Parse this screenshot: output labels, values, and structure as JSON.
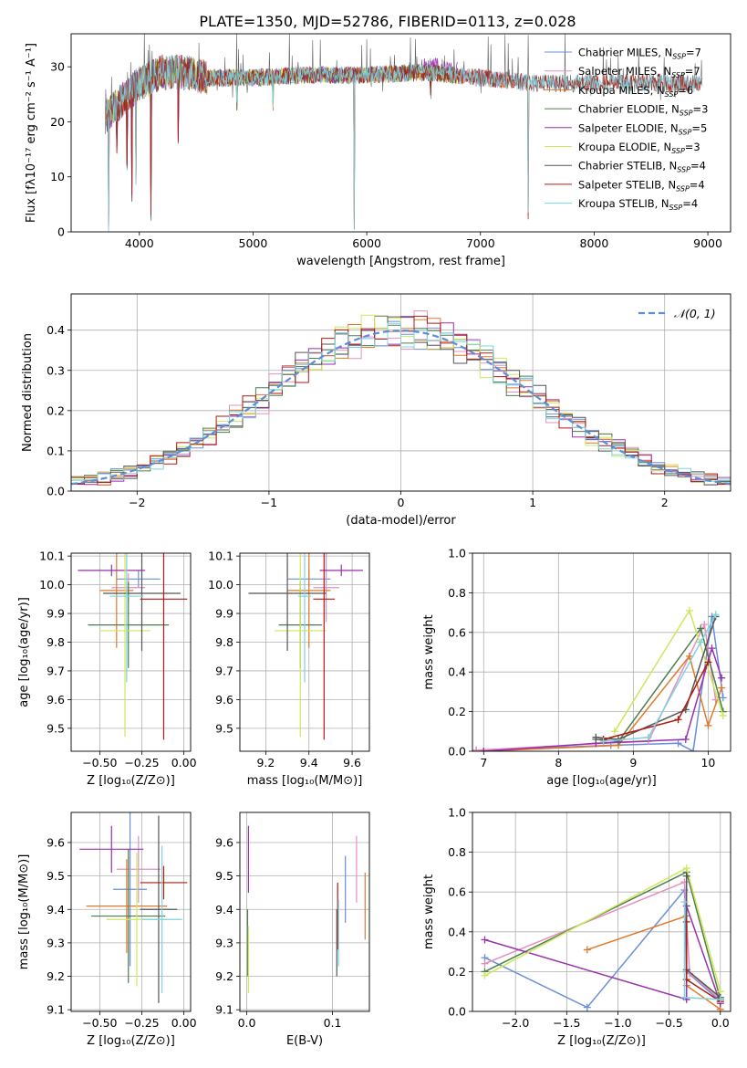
{
  "suptitle": "PLATE=1350, MJD=52786, FIBERID=0113, z=0.028",
  "colors": {
    "chabrier_miles": "#6a8fd8",
    "salpeter_miles": "#e58fbf",
    "kroupa_miles": "#e07a2a",
    "chabrier_elodie": "#4e7d4e",
    "salpeter_elodie": "#9b2fae",
    "kroupa_elodie": "#cde85a",
    "chabrier_stelib": "#555555",
    "salpeter_stelib": "#b01a12",
    "kroupa_stelib": "#7fd3df"
  },
  "chart_data": [
    {
      "id": "spectrum",
      "type": "line",
      "xlabel": "wavelength [Angstrom, rest frame]",
      "ylabel": "Flux [fλ10⁻¹⁷ erg cm⁻² s⁻¹ A⁻¹]",
      "xlim": [
        3400,
        9200
      ],
      "ylim": [
        0,
        36
      ],
      "xticks": [
        4000,
        5000,
        6000,
        7000,
        8000,
        9000
      ],
      "yticks": [
        0,
        10,
        20,
        30
      ],
      "legend_placement": "top-right",
      "grid": false,
      "series": [
        {
          "name": "Chabrier MILES, N_SSP=7",
          "label": "Chabrier MILES, N",
          "sub": "SSP",
          "suffix": "=7",
          "color": "#6a8fd8",
          "range": [
            3700,
            7400
          ]
        },
        {
          "name": "Salpeter MILES, N_SSP=7",
          "label": "Salpeter MILES, N",
          "sub": "SSP",
          "suffix": "=7",
          "color": "#e58fbf",
          "range": [
            3700,
            7400
          ]
        },
        {
          "name": "Kroupa MILES, N_SSP=6",
          "label": "Kroupa MILES, N",
          "sub": "SSP",
          "suffix": "=6",
          "color": "#e07a2a",
          "range": [
            3700,
            7430
          ]
        },
        {
          "name": "Chabrier ELODIE, N_SSP=3",
          "label": "Chabrier ELODIE, N",
          "sub": "SSP",
          "suffix": "=3",
          "color": "#4e7d4e",
          "range": [
            3700,
            6800
          ]
        },
        {
          "name": "Salpeter ELODIE, N_SSP=5",
          "label": "Salpeter ELODIE, N",
          "sub": "SSP",
          "suffix": "=5",
          "color": "#9b2fae",
          "range": [
            3700,
            6800
          ]
        },
        {
          "name": "Kroupa ELODIE, N_SSP=3",
          "label": "Kroupa ELODIE, N",
          "sub": "SSP",
          "suffix": "=3",
          "color": "#cde85a",
          "range": [
            3700,
            6800
          ]
        },
        {
          "name": "Chabrier STELIB, N_SSP=4",
          "label": "Chabrier STELIB, N",
          "sub": "SSP",
          "suffix": "=4",
          "color": "#555555",
          "range": [
            3700,
            8950
          ]
        },
        {
          "name": "Salpeter STELIB, N_SSP=4",
          "label": "Salpeter STELIB, N",
          "sub": "SSP",
          "suffix": "=4",
          "color": "#b01a12",
          "range": [
            3700,
            8950
          ]
        },
        {
          "name": "Kroupa STELIB, N_SSP=4",
          "label": "Kroupa STELIB, N",
          "sub": "SSP",
          "suffix": "=4",
          "color": "#7fd3df",
          "range": [
            3700,
            8950
          ]
        }
      ],
      "continuum": [
        [
          3700,
          21
        ],
        [
          3800,
          23
        ],
        [
          3900,
          25
        ],
        [
          4000,
          27
        ],
        [
          4200,
          29
        ],
        [
          4400,
          29
        ],
        [
          4600,
          28
        ],
        [
          5000,
          28
        ],
        [
          5500,
          28.5
        ],
        [
          6000,
          28.5
        ],
        [
          6500,
          29
        ],
        [
          7000,
          28
        ],
        [
          7500,
          27
        ],
        [
          8000,
          27
        ],
        [
          8500,
          27
        ],
        [
          8950,
          27
        ]
      ],
      "dips": [
        [
          3730,
          0
        ],
        [
          3800,
          14
        ],
        [
          3890,
          11
        ],
        [
          3935,
          5
        ],
        [
          3970,
          8
        ],
        [
          4100,
          2
        ],
        [
          4340,
          16
        ],
        [
          4860,
          22
        ],
        [
          5175,
          22
        ],
        [
          5890,
          0
        ],
        [
          6563,
          24
        ],
        [
          7420,
          2
        ]
      ]
    },
    {
      "id": "residuals",
      "type": "bar",
      "xlabel": "(data-model)/error",
      "ylabel": "Normed distribution",
      "xlim": [
        -2.5,
        2.5
      ],
      "ylim": [
        0,
        0.49
      ],
      "xticks": [
        -2,
        -1,
        0,
        1,
        2
      ],
      "yticks": [
        0.0,
        0.1,
        0.2,
        0.3,
        0.4
      ],
      "bin_width": 0.1,
      "legend_placement": "top-right",
      "legend_label": "𝒩(0, 1)",
      "reference_curve_color": "#5b8ed8",
      "grid": true
    },
    {
      "id": "age_vs_Z",
      "type": "scatter",
      "xlabel": "Z [log₁₀(Z/Z⊙)]",
      "ylabel": "age [log₁₀(age/yr)]",
      "xlim": [
        -0.67,
        0.04
      ],
      "ylim": [
        9.42,
        10.11
      ],
      "xticks": [
        -0.5,
        -0.25,
        0.0
      ],
      "yticks": [
        9.5,
        9.6,
        9.7,
        9.8,
        9.9,
        10.0,
        10.1
      ],
      "grid": true,
      "points": [
        {
          "color": "#6a8fd8",
          "x": -0.27,
          "xerr": 0.13,
          "y": 10.02,
          "yerr": 0.03
        },
        {
          "color": "#e58fbf",
          "x": -0.33,
          "xerr": 0.1,
          "y": 9.99,
          "yerr": 0.05
        },
        {
          "color": "#e07a2a",
          "x": -0.4,
          "xerr": 0.1,
          "y": 9.98,
          "yerr": 0.2
        },
        {
          "color": "#4e7d4e",
          "x": -0.33,
          "xerr": 0.24,
          "y": 9.86,
          "yerr": 0.15
        },
        {
          "color": "#9b2fae",
          "x": -0.43,
          "xerr": 0.2,
          "y": 10.05,
          "yerr": 0.02
        },
        {
          "color": "#cde85a",
          "x": -0.35,
          "xerr": 0.15,
          "y": 9.84,
          "yerr": 0.37
        },
        {
          "color": "#555555",
          "x": -0.25,
          "xerr": 0.23,
          "y": 9.97,
          "yerr": 0.2
        },
        {
          "color": "#b01a12",
          "x": -0.12,
          "xerr": 0.14,
          "y": 9.95,
          "yerr": 0.49
        },
        {
          "color": "#7fd3df",
          "x": -0.34,
          "xerr": 0.1,
          "y": 9.96,
          "yerr": 0.3
        }
      ]
    },
    {
      "id": "age_vs_mass",
      "type": "scatter",
      "xlabel": "mass [log₁₀(M/M⊙)]",
      "ylabel": "",
      "xlim": [
        9.08,
        9.68
      ],
      "ylim": [
        9.42,
        10.11
      ],
      "xticks": [
        9.2,
        9.4,
        9.6
      ],
      "yticks": [
        9.5,
        9.6,
        9.7,
        9.8,
        9.9,
        10.0,
        10.1
      ],
      "grid": true,
      "points": [
        {
          "color": "#6a8fd8",
          "x": 9.4,
          "xerr": 0.1,
          "y": 10.02,
          "yerr": 0.03
        },
        {
          "color": "#e58fbf",
          "x": 9.48,
          "xerr": 0.06,
          "y": 9.99,
          "yerr": 0.12
        },
        {
          "color": "#e07a2a",
          "x": 9.4,
          "xerr": 0.1,
          "y": 9.98,
          "yerr": 0.2
        },
        {
          "color": "#4e7d4e",
          "x": 9.36,
          "xerr": 0.1,
          "y": 9.86,
          "yerr": 0.15
        },
        {
          "color": "#9b2fae",
          "x": 9.55,
          "xerr": 0.1,
          "y": 10.05,
          "yerr": 0.02
        },
        {
          "color": "#cde85a",
          "x": 9.36,
          "xerr": 0.12,
          "y": 9.84,
          "yerr": 0.37
        },
        {
          "color": "#555555",
          "x": 9.3,
          "xerr": 0.18,
          "y": 9.97,
          "yerr": 0.2
        },
        {
          "color": "#b01a12",
          "x": 9.47,
          "xerr": 0.05,
          "y": 9.95,
          "yerr": 0.49
        },
        {
          "color": "#7fd3df",
          "x": 9.38,
          "xerr": 0.03,
          "y": 9.96,
          "yerr": 0.3
        }
      ]
    },
    {
      "id": "mass_weight_vs_age",
      "type": "line",
      "xlabel": "age [log₁₀(age/yr)]",
      "ylabel": "mass weight",
      "xlim": [
        6.85,
        10.3
      ],
      "ylim": [
        0,
        1.0
      ],
      "xticks": [
        7,
        8,
        9,
        10
      ],
      "yticks": [
        0.0,
        0.2,
        0.4,
        0.6,
        0.8,
        1.0
      ],
      "grid": true,
      "series": [
        {
          "color": "#6a8fd8",
          "points": [
            [
              6.9,
              0.005
            ],
            [
              8.7,
              0.03
            ],
            [
              9.6,
              0.04
            ],
            [
              9.8,
              0.0
            ],
            [
              10.05,
              0.68
            ],
            [
              10.2,
              0.27
            ]
          ]
        },
        {
          "color": "#e58fbf",
          "points": [
            [
              6.9,
              0.005
            ],
            [
              8.6,
              0.04
            ],
            [
              9.2,
              0.05
            ],
            [
              9.95,
              0.64
            ],
            [
              10.1,
              0.26
            ]
          ]
        },
        {
          "color": "#e07a2a",
          "points": [
            [
              7.0,
              0.0
            ],
            [
              8.8,
              0.03
            ],
            [
              9.75,
              0.48
            ],
            [
              10.0,
              0.13
            ],
            [
              10.18,
              0.32
            ]
          ]
        },
        {
          "color": "#4e7d4e",
          "points": [
            [
              8.5,
              0.06
            ],
            [
              8.8,
              0.05
            ],
            [
              9.9,
              0.62
            ],
            [
              10.2,
              0.2
            ]
          ]
        },
        {
          "color": "#9b2fae",
          "points": [
            [
              7.0,
              0.0
            ],
            [
              8.5,
              0.04
            ],
            [
              9.7,
              0.06
            ],
            [
              10.05,
              0.52
            ],
            [
              10.18,
              0.37
            ]
          ]
        },
        {
          "color": "#cde85a",
          "points": [
            [
              8.75,
              0.1
            ],
            [
              9.75,
              0.71
            ],
            [
              10.2,
              0.18
            ]
          ]
        },
        {
          "color": "#555555",
          "points": [
            [
              8.5,
              0.07
            ],
            [
              8.8,
              0.06
            ],
            [
              9.7,
              0.21
            ],
            [
              10.1,
              0.68
            ]
          ]
        },
        {
          "color": "#b01a12",
          "points": [
            [
              8.6,
              0.06
            ],
            [
              9.6,
              0.16
            ],
            [
              10.0,
              0.45
            ]
          ]
        },
        {
          "color": "#7fd3df",
          "points": [
            [
              8.6,
              0.05
            ],
            [
              9.2,
              0.07
            ],
            [
              9.9,
              0.55
            ],
            [
              10.1,
              0.69
            ]
          ]
        }
      ]
    },
    {
      "id": "mass_vs_Z",
      "type": "scatter",
      "xlabel": "Z [log₁₀(Z/Z⊙)]",
      "ylabel": "mass [log₁₀(M/M⊙)]",
      "xlim": [
        -0.67,
        0.04
      ],
      "ylim": [
        9.095,
        9.69
      ],
      "xticks": [
        -0.5,
        -0.25,
        0.0
      ],
      "yticks": [
        9.1,
        9.2,
        9.3,
        9.4,
        9.5,
        9.6
      ],
      "grid": true,
      "points": [
        {
          "color": "#6a8fd8",
          "x": -0.32,
          "xerr": 0.1,
          "y": 9.46,
          "yerr": 0.23
        },
        {
          "color": "#e58fbf",
          "x": -0.27,
          "xerr": 0.13,
          "y": 9.52,
          "yerr": 0.1
        },
        {
          "color": "#e07a2a",
          "x": -0.34,
          "xerr": 0.24,
          "y": 9.41,
          "yerr": 0.14
        },
        {
          "color": "#4e7d4e",
          "x": -0.33,
          "xerr": 0.22,
          "y": 9.38,
          "yerr": 0.2
        },
        {
          "color": "#9b2fae",
          "x": -0.43,
          "xerr": 0.19,
          "y": 9.58,
          "yerr": 0.07
        },
        {
          "color": "#cde85a",
          "x": -0.28,
          "xerr": 0.18,
          "y": 9.37,
          "yerr": 0.2
        },
        {
          "color": "#555555",
          "x": -0.15,
          "xerr": 0.11,
          "y": 9.4,
          "yerr": 0.28
        },
        {
          "color": "#b01a12",
          "x": -0.12,
          "xerr": 0.14,
          "y": 9.48,
          "yerr": 0.05
        },
        {
          "color": "#7fd3df",
          "x": -0.13,
          "xerr": 0.12,
          "y": 9.37,
          "yerr": 0.22
        }
      ]
    },
    {
      "id": "mass_vs_ebv",
      "type": "scatter",
      "xlabel": "E(B-V)",
      "ylabel": "",
      "xlim": [
        -0.008,
        0.143
      ],
      "ylim": [
        9.095,
        9.69
      ],
      "xticks": [
        0.0,
        0.1
      ],
      "yticks": [
        9.1,
        9.2,
        9.3,
        9.4,
        9.5,
        9.6
      ],
      "grid": true,
      "points": [
        {
          "color": "#6a8fd8",
          "x": 0.115,
          "y": 9.46,
          "yerr": 0.1
        },
        {
          "color": "#e58fbf",
          "x": 0.128,
          "y": 9.52,
          "yerr": 0.1
        },
        {
          "color": "#e07a2a",
          "x": 0.138,
          "y": 9.41,
          "yerr": 0.1
        },
        {
          "color": "#4e7d4e",
          "x": 0.001,
          "y": 9.3,
          "yerr": 0.1
        },
        {
          "color": "#9b2fae",
          "x": 0.002,
          "y": 9.55,
          "yerr": 0.1
        },
        {
          "color": "#cde85a",
          "x": 0.002,
          "y": 9.25,
          "yerr": 0.1
        },
        {
          "color": "#555555",
          "x": 0.105,
          "y": 9.3,
          "yerr": 0.1
        },
        {
          "color": "#b01a12",
          "x": 0.106,
          "y": 9.38,
          "yerr": 0.1
        },
        {
          "color": "#7fd3df",
          "x": 0.107,
          "y": 9.33,
          "yerr": 0.1
        }
      ]
    },
    {
      "id": "mass_weight_vs_Z",
      "type": "line",
      "xlabel": "Z [log₁₀(Z/Z⊙)]",
      "ylabel": "mass weight",
      "xlim": [
        -2.42,
        0.1
      ],
      "ylim": [
        0,
        1.0
      ],
      "xticks": [
        -2.0,
        -1.5,
        -1.0,
        -0.5,
        0.0
      ],
      "yticks": [
        0.0,
        0.2,
        0.4,
        0.6,
        0.8,
        1.0
      ],
      "grid": true,
      "series": [
        {
          "color": "#6a8fd8",
          "points": [
            [
              -2.3,
              0.27
            ],
            [
              -1.3,
              0.02
            ],
            [
              -0.35,
              0.61
            ],
            [
              -0.33,
              0.2
            ],
            [
              0.0,
              0.05
            ]
          ]
        },
        {
          "color": "#e58fbf",
          "points": [
            [
              -2.3,
              0.24
            ],
            [
              -0.35,
              0.65
            ],
            [
              -0.3,
              0.19
            ],
            [
              0.0,
              0.06
            ]
          ]
        },
        {
          "color": "#e07a2a",
          "points": [
            [
              -1.3,
              0.31
            ],
            [
              -0.33,
              0.48
            ],
            [
              -0.33,
              0.13
            ],
            [
              0.0,
              0.01
            ]
          ]
        },
        {
          "color": "#4e7d4e",
          "points": [
            [
              -2.3,
              0.2
            ],
            [
              -0.33,
              0.7
            ],
            [
              0.0,
              0.06
            ]
          ]
        },
        {
          "color": "#9b2fae",
          "points": [
            [
              -2.3,
              0.36
            ],
            [
              -0.33,
              0.06
            ],
            [
              -0.33,
              0.53
            ],
            [
              0.0,
              0.04
            ]
          ]
        },
        {
          "color": "#cde85a",
          "points": [
            [
              -2.3,
              0.18
            ],
            [
              -0.33,
              0.72
            ],
            [
              0.0,
              0.1
            ]
          ]
        },
        {
          "color": "#555555",
          "points": [
            [
              -0.33,
              0.68
            ],
            [
              -0.33,
              0.21
            ],
            [
              0.0,
              0.07
            ]
          ]
        },
        {
          "color": "#b01a12",
          "points": [
            [
              -0.33,
              0.45
            ],
            [
              -0.33,
              0.16
            ],
            [
              0.0,
              0.05
            ]
          ]
        },
        {
          "color": "#7fd3df",
          "points": [
            [
              -0.35,
              0.55
            ],
            [
              -0.35,
              0.07
            ],
            [
              0.0,
              0.06
            ]
          ]
        }
      ]
    }
  ]
}
